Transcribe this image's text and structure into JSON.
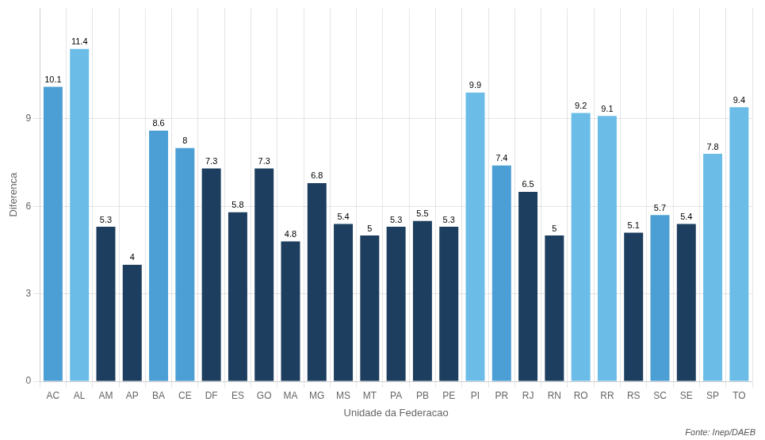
{
  "chart_data": {
    "type": "bar",
    "categories": [
      "AC",
      "AL",
      "AM",
      "AP",
      "BA",
      "CE",
      "DF",
      "ES",
      "GO",
      "MA",
      "MG",
      "MS",
      "MT",
      "PA",
      "PB",
      "PE",
      "PI",
      "PR",
      "RJ",
      "RN",
      "RO",
      "RR",
      "RS",
      "SC",
      "SE",
      "SP",
      "TO"
    ],
    "values": [
      10.1,
      11.4,
      5.3,
      4.0,
      8.6,
      8.0,
      7.3,
      5.8,
      7.3,
      4.8,
      6.8,
      5.4,
      5.0,
      5.3,
      5.5,
      5.3,
      9.9,
      7.4,
      6.5,
      5.0,
      9.2,
      9.1,
      5.1,
      5.7,
      5.4,
      7.8,
      9.4
    ],
    "colors": [
      "#4C9FD4",
      "#6BBDE8",
      "#1D3E5E",
      "#1D3E5E",
      "#4C9FD4",
      "#4C9FD4",
      "#1D3E5E",
      "#1D3E5E",
      "#1D3E5E",
      "#1D3E5E",
      "#1D3E5E",
      "#1D3E5E",
      "#1D3E5E",
      "#1D3E5E",
      "#1D3E5E",
      "#1D3E5E",
      "#6BBDE8",
      "#4C9FD4",
      "#1D3E5E",
      "#1D3E5E",
      "#6BBDE8",
      "#6BBDE8",
      "#1D3E5E",
      "#4C9FD4",
      "#1D3E5E",
      "#6BBDE8",
      "#6BBDE8"
    ],
    "xlabel": "Unidade da Federacao",
    "ylabel": "Diferenca",
    "ylim": [
      0,
      12.8
    ],
    "yticks": [
      0,
      3,
      6,
      9
    ],
    "grid": true,
    "data_labels": true,
    "annotations": [
      "Fonte: Inep/DAEB"
    ]
  }
}
